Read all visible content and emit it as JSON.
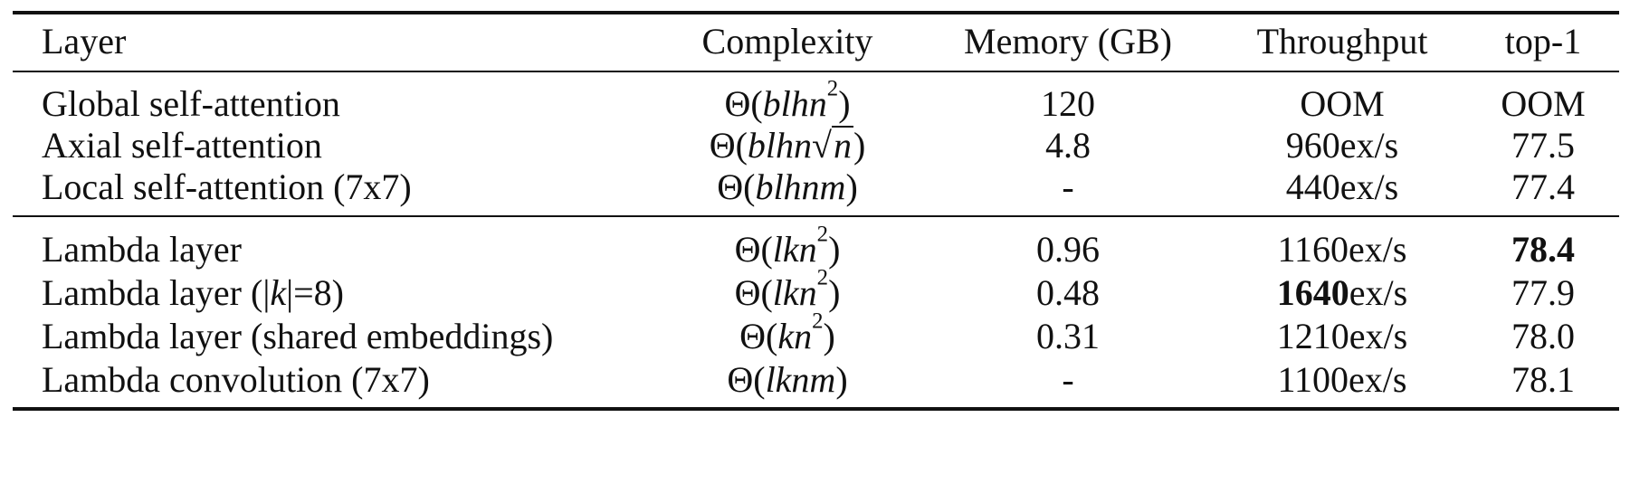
{
  "table": {
    "headers": [
      "Layer",
      "Complexity",
      "Memory (GB)",
      "Throughput",
      "top-1"
    ],
    "group1": [
      {
        "layer": "Global self-attention",
        "complexity": {
          "pre": "Θ(",
          "vars": "blhn",
          "sup": "2",
          "post": ")"
        },
        "memory": "120",
        "throughput_bold": "",
        "throughput": "OOM",
        "top1_bold": "",
        "top1": "OOM"
      },
      {
        "layer": "Axial self-attention",
        "complexity": {
          "pre": "Θ(",
          "vars": "blhn",
          "sqrt": "n",
          "post": ")"
        },
        "memory": "4.8",
        "throughput_bold": "",
        "throughput": "960ex/s",
        "top1_bold": "",
        "top1": "77.5"
      },
      {
        "layer": "Local self-attention (7x7)",
        "complexity": {
          "pre": "Θ(",
          "vars": "blhnm",
          "post": ")"
        },
        "memory": "-",
        "throughput_bold": "",
        "throughput": "440ex/s",
        "top1_bold": "",
        "top1": "77.4"
      }
    ],
    "group2": [
      {
        "layer": "Lambda layer",
        "complexity": {
          "pre": "Θ(",
          "vars": "lkn",
          "sup": "2",
          "post": ")"
        },
        "memory": "0.96",
        "throughput_bold": "",
        "throughput": "1160ex/s",
        "top1_bold": "78.4",
        "top1": ""
      },
      {
        "layer_pre": "Lambda layer (|",
        "layer_var": "k",
        "layer_post": "|=8)",
        "complexity": {
          "pre": "Θ(",
          "vars": "lkn",
          "sup": "2",
          "post": ")"
        },
        "memory": "0.48",
        "throughput_bold": "1640",
        "throughput": "ex/s",
        "top1_bold": "",
        "top1": "77.9"
      },
      {
        "layer": "Lambda layer (shared embeddings)",
        "complexity": {
          "pre": "Θ(",
          "vars": "kn",
          "sup": "2",
          "post": ")"
        },
        "memory": "0.31",
        "throughput_bold": "",
        "throughput": "1210ex/s",
        "top1_bold": "",
        "top1": "78.0"
      },
      {
        "layer": "Lambda convolution (7x7)",
        "complexity": {
          "pre": "Θ(",
          "vars": "lknm",
          "post": ")"
        },
        "memory": "-",
        "throughput_bold": "",
        "throughput": "1100ex/s",
        "top1_bold": "",
        "top1": "78.1"
      }
    ]
  }
}
